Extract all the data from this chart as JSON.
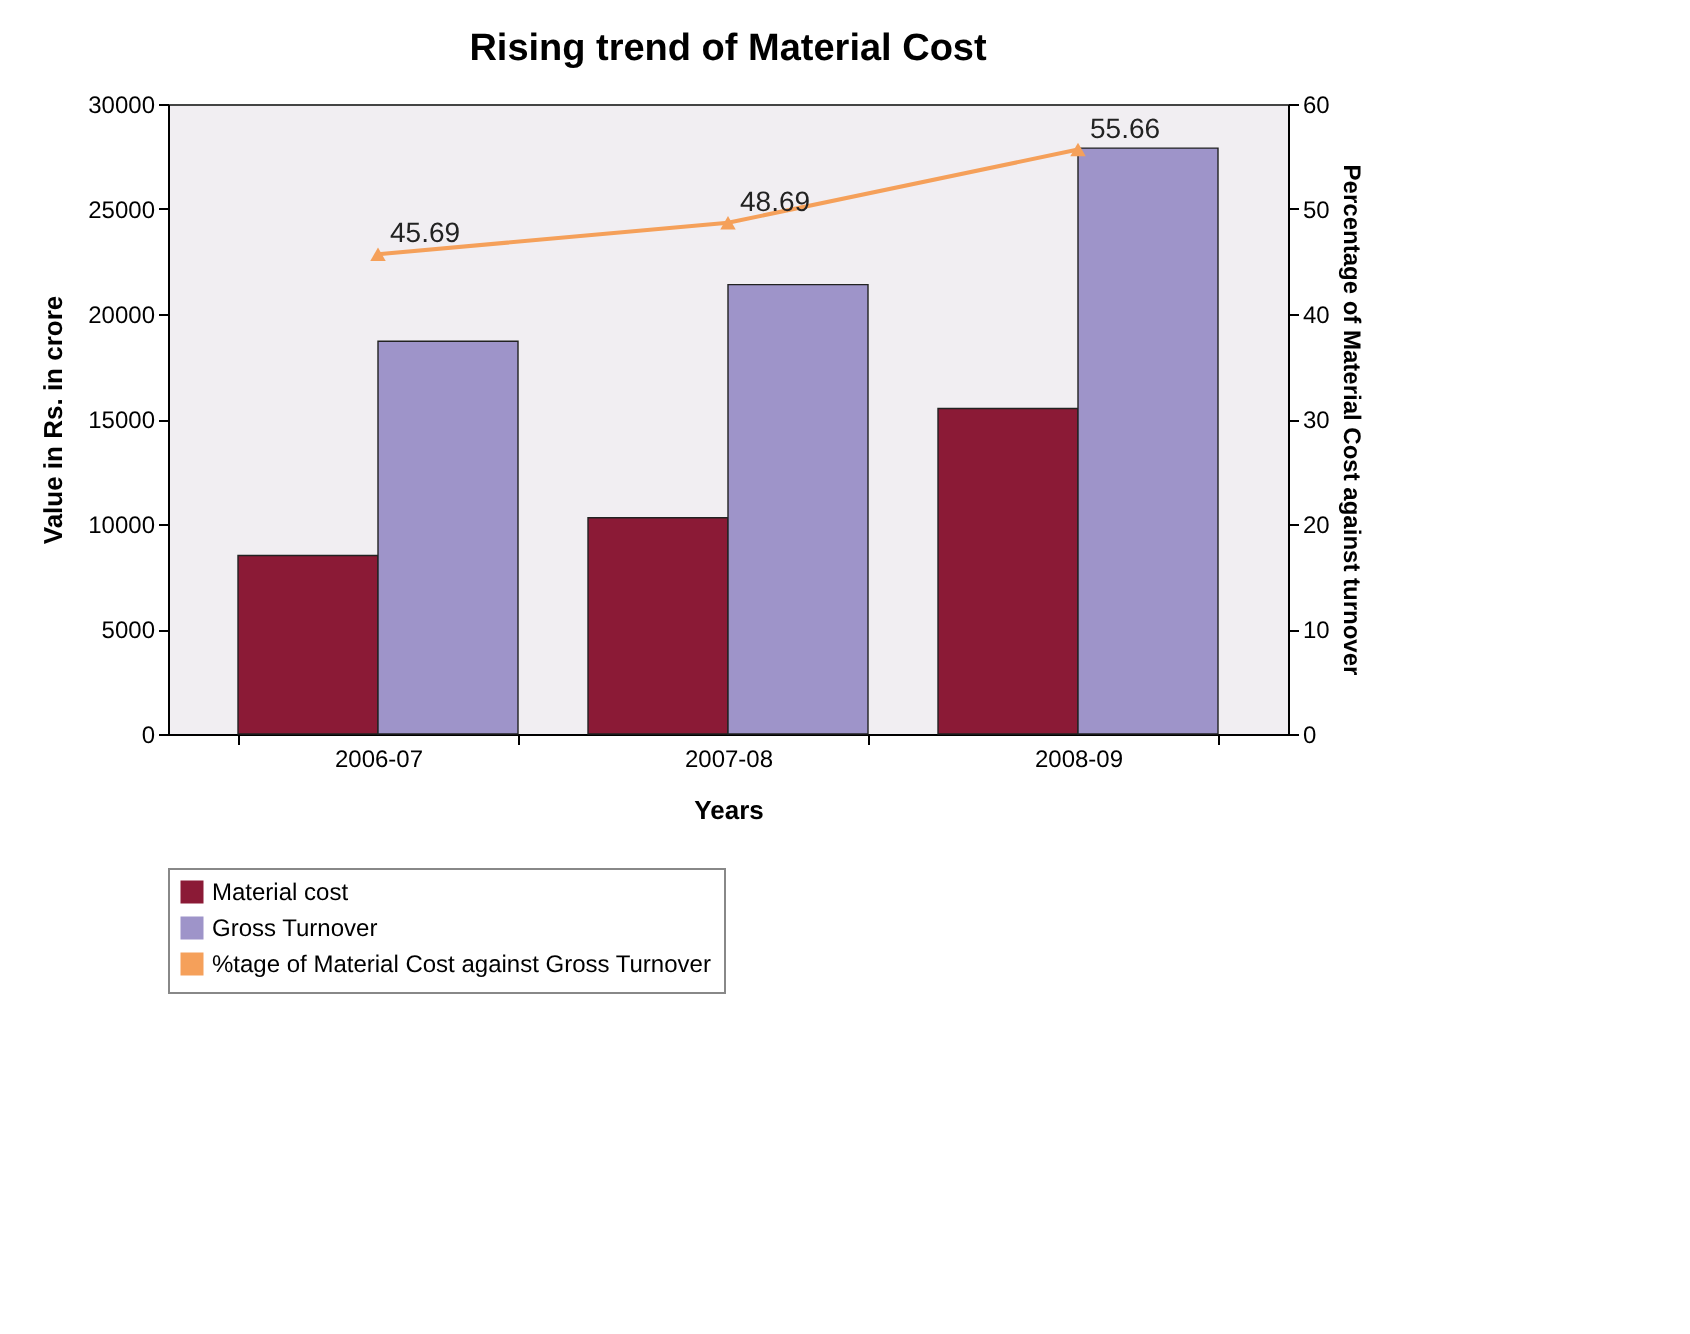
{
  "chart_data": {
    "type": "bar",
    "title": "Rising trend of Material Cost",
    "xlabel": "Years",
    "ylabel": "Value in Rs. in crore",
    "y2label": "Percentage of Material Cost against turnover",
    "categories": [
      "2006-07",
      "2007-08",
      "2008-09"
    ],
    "series": [
      {
        "name": "Material cost",
        "color": "#8b1a36",
        "values": [
          8500,
          10300,
          15500
        ]
      },
      {
        "name": "Gross Turnover",
        "color": "#9e94c9",
        "values": [
          18700,
          21400,
          27900
        ]
      },
      {
        "name": "%tage of Material Cost against Gross Turnover",
        "type": "line",
        "axis": "y2",
        "color": "#f5a05a",
        "values": [
          45.69,
          48.69,
          55.66
        ],
        "value_labels": [
          "45.69",
          "48.69",
          "55.66"
        ]
      }
    ],
    "ylim": [
      0,
      30000
    ],
    "yticks": [
      0,
      5000,
      10000,
      15000,
      20000,
      25000,
      30000
    ],
    "y2lim": [
      0,
      60
    ],
    "y2ticks": [
      0,
      10,
      20,
      30,
      40,
      50,
      60
    ],
    "marker": "triangle",
    "legend": "bottom"
  }
}
